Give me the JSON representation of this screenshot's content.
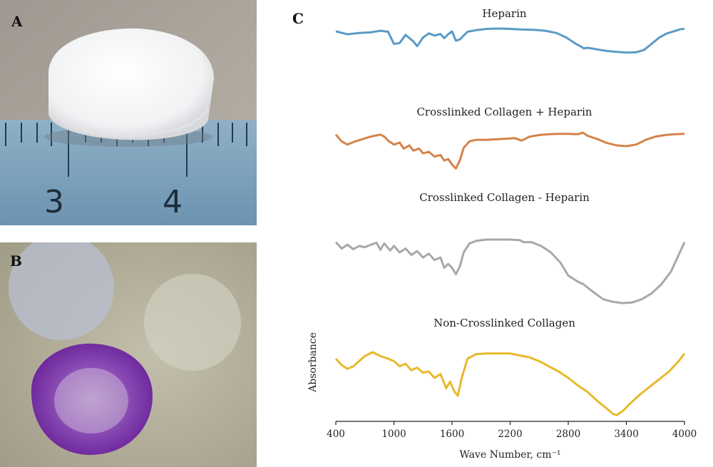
{
  "panels": {
    "a": {
      "label": "A",
      "ruler_numbers": [
        "3",
        "4"
      ]
    },
    "b": {
      "label": "B"
    },
    "c": {
      "label": "C"
    }
  },
  "chart_data": {
    "type": "line",
    "title": "",
    "xlabel": "Wave Number, cm⁻¹",
    "ylabel": "Absorbance",
    "xlim": [
      400,
      4000
    ],
    "xticks": [
      400,
      1000,
      1600,
      2200,
      2800,
      3400,
      4000
    ],
    "grid": false,
    "legend": "none",
    "y_units_note": "relative absorbance, stacked traces (arbitrary units)",
    "series": [
      {
        "name": "Heparin",
        "color": "#5b9ac6",
        "points": [
          [
            400,
            0.91
          ],
          [
            520,
            0.82
          ],
          [
            640,
            0.86
          ],
          [
            760,
            0.88
          ],
          [
            860,
            0.93
          ],
          [
            940,
            0.9
          ],
          [
            1000,
            0.52
          ],
          [
            1060,
            0.55
          ],
          [
            1120,
            0.8
          ],
          [
            1200,
            0.6
          ],
          [
            1240,
            0.45
          ],
          [
            1300,
            0.72
          ],
          [
            1360,
            0.85
          ],
          [
            1420,
            0.78
          ],
          [
            1480,
            0.83
          ],
          [
            1520,
            0.7
          ],
          [
            1560,
            0.82
          ],
          [
            1600,
            0.91
          ],
          [
            1640,
            0.62
          ],
          [
            1680,
            0.66
          ],
          [
            1760,
            0.9
          ],
          [
            1850,
            0.95
          ],
          [
            1960,
            0.99
          ],
          [
            2080,
            1.0
          ],
          [
            2200,
            0.99
          ],
          [
            2320,
            0.97
          ],
          [
            2440,
            0.96
          ],
          [
            2560,
            0.93
          ],
          [
            2680,
            0.86
          ],
          [
            2780,
            0.72
          ],
          [
            2880,
            0.52
          ],
          [
            2930,
            0.44
          ],
          [
            2960,
            0.38
          ],
          [
            3000,
            0.4
          ],
          [
            3100,
            0.35
          ],
          [
            3200,
            0.3
          ],
          [
            3300,
            0.27
          ],
          [
            3400,
            0.25
          ],
          [
            3500,
            0.26
          ],
          [
            3580,
            0.33
          ],
          [
            3660,
            0.52
          ],
          [
            3740,
            0.72
          ],
          [
            3820,
            0.85
          ],
          [
            3900,
            0.92
          ],
          [
            3960,
            0.98
          ],
          [
            4000,
            0.99
          ]
        ]
      },
      {
        "name": "Crosslinked Collagen + Heparin",
        "color": "#d4834a",
        "points": [
          [
            400,
            0.95
          ],
          [
            460,
            0.78
          ],
          [
            520,
            0.7
          ],
          [
            600,
            0.78
          ],
          [
            680,
            0.84
          ],
          [
            760,
            0.9
          ],
          [
            820,
            0.93
          ],
          [
            860,
            0.95
          ],
          [
            900,
            0.9
          ],
          [
            940,
            0.8
          ],
          [
            1000,
            0.7
          ],
          [
            1060,
            0.75
          ],
          [
            1100,
            0.6
          ],
          [
            1160,
            0.68
          ],
          [
            1200,
            0.55
          ],
          [
            1260,
            0.6
          ],
          [
            1300,
            0.48
          ],
          [
            1360,
            0.52
          ],
          [
            1420,
            0.4
          ],
          [
            1480,
            0.44
          ],
          [
            1520,
            0.3
          ],
          [
            1560,
            0.34
          ],
          [
            1600,
            0.2
          ],
          [
            1640,
            0.1
          ],
          [
            1680,
            0.3
          ],
          [
            1720,
            0.62
          ],
          [
            1780,
            0.78
          ],
          [
            1850,
            0.82
          ],
          [
            1960,
            0.82
          ],
          [
            2100,
            0.84
          ],
          [
            2250,
            0.86
          ],
          [
            2320,
            0.8
          ],
          [
            2400,
            0.9
          ],
          [
            2500,
            0.94
          ],
          [
            2600,
            0.96
          ],
          [
            2700,
            0.97
          ],
          [
            2800,
            0.97
          ],
          [
            2900,
            0.96
          ],
          [
            2950,
            1.0
          ],
          [
            3000,
            0.92
          ],
          [
            3100,
            0.84
          ],
          [
            3200,
            0.74
          ],
          [
            3300,
            0.68
          ],
          [
            3400,
            0.66
          ],
          [
            3500,
            0.7
          ],
          [
            3600,
            0.82
          ],
          [
            3700,
            0.9
          ],
          [
            3800,
            0.94
          ],
          [
            3900,
            0.96
          ],
          [
            4000,
            0.97
          ]
        ]
      },
      {
        "name": "Crosslinked Collagen - Heparin",
        "color": "#a8a8a8",
        "points": [
          [
            400,
            0.96
          ],
          [
            460,
            0.86
          ],
          [
            520,
            0.92
          ],
          [
            580,
            0.85
          ],
          [
            640,
            0.9
          ],
          [
            700,
            0.88
          ],
          [
            760,
            0.92
          ],
          [
            820,
            0.95
          ],
          [
            860,
            0.84
          ],
          [
            900,
            0.94
          ],
          [
            960,
            0.83
          ],
          [
            1000,
            0.9
          ],
          [
            1060,
            0.8
          ],
          [
            1120,
            0.86
          ],
          [
            1180,
            0.76
          ],
          [
            1240,
            0.82
          ],
          [
            1300,
            0.72
          ],
          [
            1360,
            0.78
          ],
          [
            1420,
            0.68
          ],
          [
            1480,
            0.72
          ],
          [
            1520,
            0.56
          ],
          [
            1560,
            0.62
          ],
          [
            1600,
            0.56
          ],
          [
            1640,
            0.46
          ],
          [
            1680,
            0.58
          ],
          [
            1720,
            0.8
          ],
          [
            1780,
            0.94
          ],
          [
            1850,
            0.98
          ],
          [
            1960,
            1.0
          ],
          [
            2080,
            1.0
          ],
          [
            2200,
            1.0
          ],
          [
            2300,
            0.99
          ],
          [
            2340,
            0.96
          ],
          [
            2420,
            0.96
          ],
          [
            2520,
            0.9
          ],
          [
            2620,
            0.8
          ],
          [
            2720,
            0.64
          ],
          [
            2800,
            0.44
          ],
          [
            2880,
            0.36
          ],
          [
            2960,
            0.3
          ],
          [
            3060,
            0.18
          ],
          [
            3160,
            0.07
          ],
          [
            3260,
            0.03
          ],
          [
            3360,
            0.01
          ],
          [
            3460,
            0.02
          ],
          [
            3560,
            0.07
          ],
          [
            3660,
            0.16
          ],
          [
            3760,
            0.3
          ],
          [
            3860,
            0.5
          ],
          [
            3940,
            0.76
          ],
          [
            4000,
            0.96
          ]
        ]
      },
      {
        "name": "Non-Crosslinked Collagen",
        "color": "#e8b92a",
        "points": [
          [
            400,
            0.9
          ],
          [
            460,
            0.8
          ],
          [
            520,
            0.74
          ],
          [
            580,
            0.78
          ],
          [
            640,
            0.86
          ],
          [
            700,
            0.94
          ],
          [
            780,
            1.0
          ],
          [
            860,
            0.94
          ],
          [
            940,
            0.9
          ],
          [
            1000,
            0.86
          ],
          [
            1060,
            0.78
          ],
          [
            1120,
            0.82
          ],
          [
            1180,
            0.72
          ],
          [
            1240,
            0.76
          ],
          [
            1300,
            0.68
          ],
          [
            1360,
            0.7
          ],
          [
            1420,
            0.6
          ],
          [
            1480,
            0.66
          ],
          [
            1540,
            0.44
          ],
          [
            1580,
            0.54
          ],
          [
            1620,
            0.4
          ],
          [
            1660,
            0.32
          ],
          [
            1700,
            0.6
          ],
          [
            1760,
            0.9
          ],
          [
            1850,
            0.97
          ],
          [
            1960,
            0.98
          ],
          [
            2080,
            0.98
          ],
          [
            2200,
            0.98
          ],
          [
            2300,
            0.95
          ],
          [
            2400,
            0.92
          ],
          [
            2500,
            0.86
          ],
          [
            2600,
            0.78
          ],
          [
            2700,
            0.7
          ],
          [
            2800,
            0.6
          ],
          [
            2900,
            0.48
          ],
          [
            3000,
            0.38
          ],
          [
            3100,
            0.24
          ],
          [
            3200,
            0.12
          ],
          [
            3260,
            0.04
          ],
          [
            3300,
            0.02
          ],
          [
            3360,
            0.08
          ],
          [
            3440,
            0.2
          ],
          [
            3540,
            0.34
          ],
          [
            3640,
            0.46
          ],
          [
            3740,
            0.58
          ],
          [
            3840,
            0.7
          ],
          [
            3940,
            0.86
          ],
          [
            4000,
            0.98
          ]
        ]
      }
    ]
  }
}
